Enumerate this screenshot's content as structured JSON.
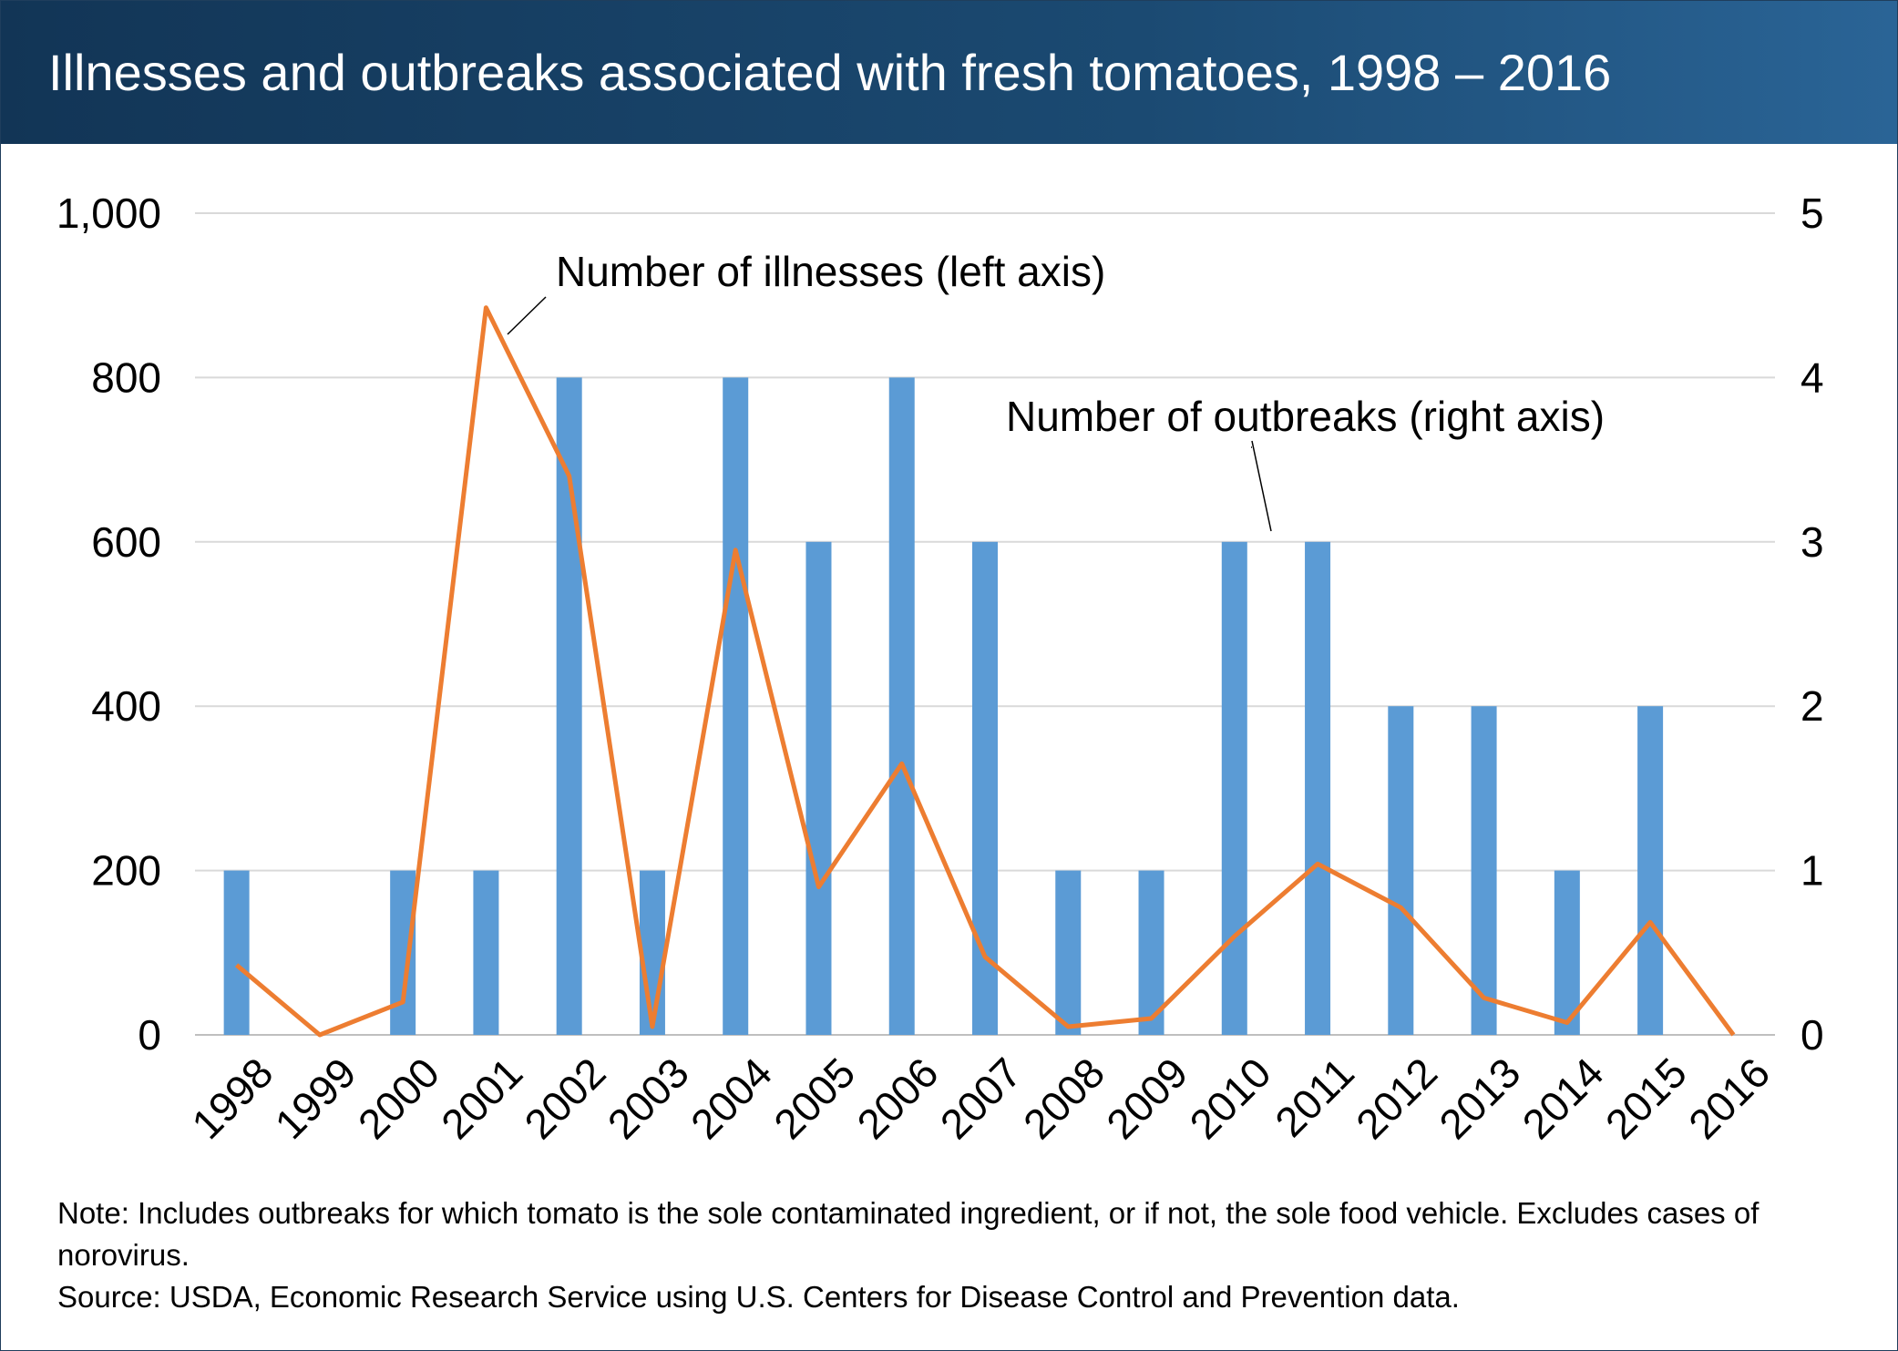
{
  "title": "Illnesses and outbreaks associated with fresh tomatoes, 1998 – 2016",
  "colors": {
    "bars": "#5b9bd5",
    "line": "#ed7d31",
    "grid": "#d9d9d9",
    "header": "#1b4a72"
  },
  "notes": {
    "note": "Note: Includes outbreaks for which tomato is the sole contaminated ingredient, or if not, the sole food vehicle. Excludes cases of norovirus.",
    "source": "Source: USDA, Economic Research Service using U.S. Centers for Disease Control and Prevention data."
  },
  "chart_data": {
    "type": "bar+line",
    "categories": [
      "1998",
      "1999",
      "2000",
      "2001",
      "2002",
      "2003",
      "2004",
      "2005",
      "2006",
      "2007",
      "2008",
      "2009",
      "2010",
      "2011",
      "2012",
      "2013",
      "2014",
      "2015",
      "2016"
    ],
    "series": [
      {
        "name": "Number of outbreaks (right axis)",
        "type": "bar",
        "axis": "right",
        "values": [
          1,
          0,
          1,
          1,
          4,
          1,
          4,
          3,
          4,
          3,
          1,
          1,
          3,
          3,
          2,
          2,
          1,
          2,
          0
        ]
      },
      {
        "name": "Number of illnesses (left axis)",
        "type": "line",
        "axis": "left",
        "values": [
          85,
          0,
          40,
          885,
          680,
          10,
          590,
          180,
          330,
          95,
          10,
          20,
          120,
          208,
          155,
          45,
          15,
          137,
          0
        ]
      }
    ],
    "left_axis": {
      "ylim": [
        0,
        1000
      ],
      "ticks": [
        "0",
        "200",
        "400",
        "600",
        "800",
        "1,000"
      ]
    },
    "right_axis": {
      "ylim": [
        0,
        5
      ],
      "ticks": [
        "0",
        "1",
        "2",
        "3",
        "4",
        "5"
      ]
    },
    "annotations": {
      "illnesses": "Number of illnesses (left axis)",
      "outbreaks": "Number of outbreaks (right axis)"
    },
    "grid": true,
    "legend": "none"
  }
}
